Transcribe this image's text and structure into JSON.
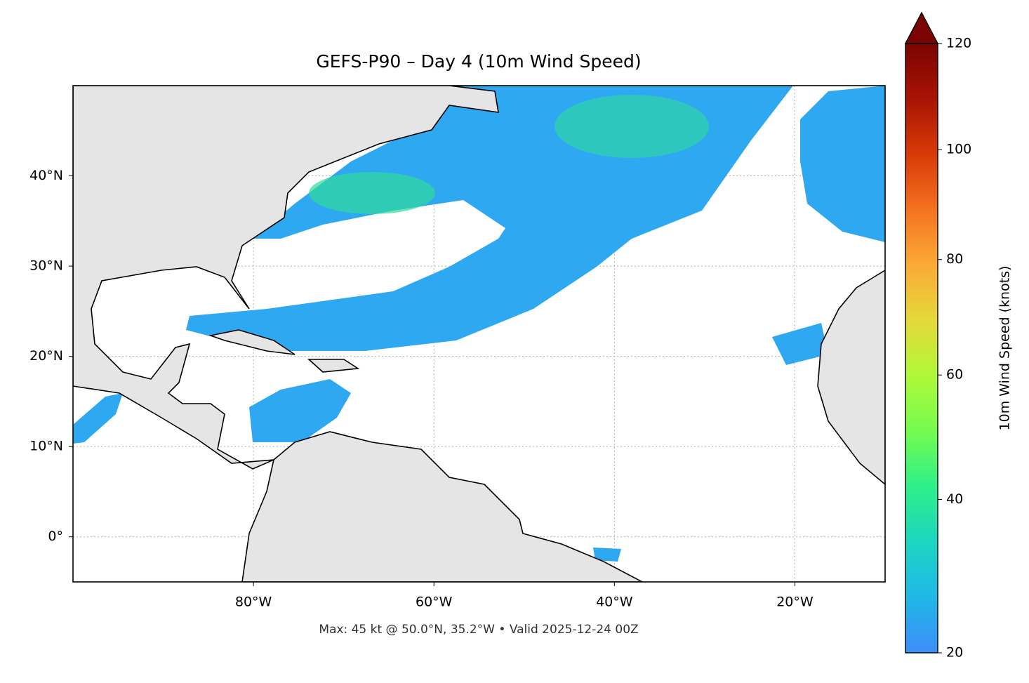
{
  "chart_data": {
    "type": "map",
    "title": "GEFS-P90 – Day 4 (10m Wind Speed)",
    "footer": "Max: 45 kt @ 50.0°N, 35.2°W • Valid 2025-12-24 00Z",
    "xlim": [
      -100,
      -10
    ],
    "ylim": [
      -5,
      50
    ],
    "xticks": [
      {
        "value": -80,
        "label": "80°W"
      },
      {
        "value": -60,
        "label": "60°W"
      },
      {
        "value": -40,
        "label": "40°W"
      },
      {
        "value": -20,
        "label": "20°W"
      }
    ],
    "yticks": [
      {
        "value": 0,
        "label": "0°"
      },
      {
        "value": 10,
        "label": "10°N"
      },
      {
        "value": 20,
        "label": "20°N"
      },
      {
        "value": 30,
        "label": "30°N"
      },
      {
        "value": 40,
        "label": "40°N"
      }
    ],
    "grid": true,
    "colorbar": {
      "label": "10m Wind Speed (knots)",
      "lim": [
        20,
        120
      ],
      "ticks": [
        20,
        40,
        60,
        80,
        100,
        120
      ],
      "norm": {
        "type": "power",
        "gamma": 0.857
      },
      "extend": "max",
      "colormap": [
        "#3d8df8",
        "#1fb8e8",
        "#1cd6c0",
        "#2ef08a",
        "#74fb4f",
        "#b0f838",
        "#e4d93a",
        "#fcaa36",
        "#f4731f",
        "#d83a08",
        "#a81403",
        "#7a0403"
      ]
    }
  }
}
